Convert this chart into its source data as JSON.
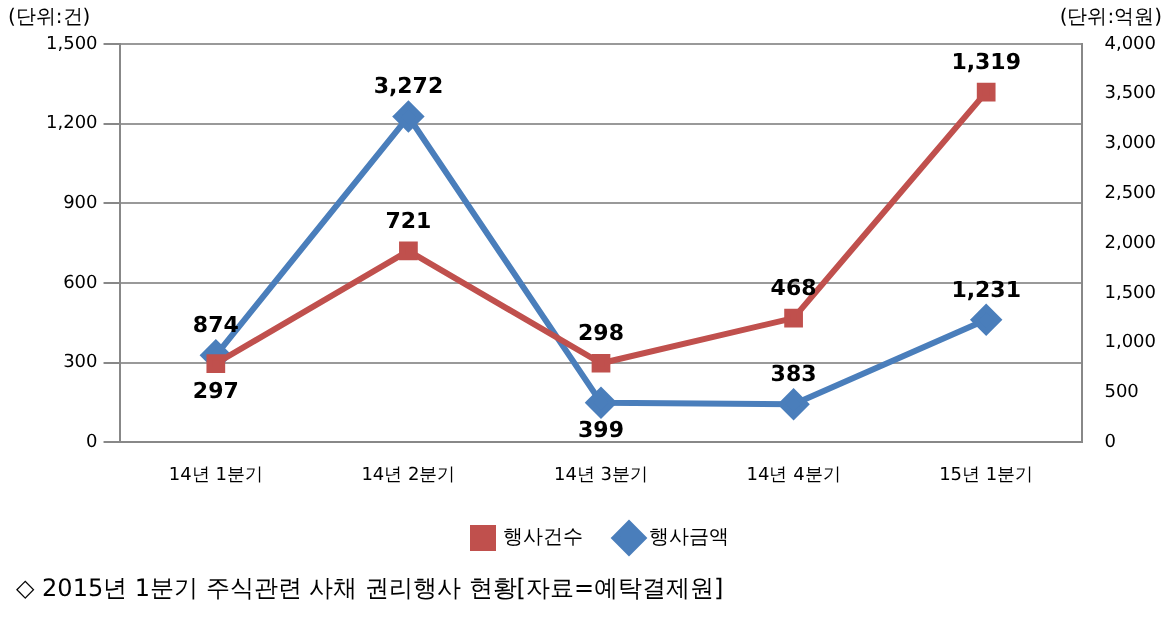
{
  "chart_data": {
    "type": "line",
    "categories": [
      "14년 1분기",
      "14년 2분기",
      "14년 3분기",
      "14년 4분기",
      "15년 1분기"
    ],
    "ylabel": "(단위:건)",
    "y2label": "(단위:억원)",
    "series": [
      {
        "name": "행사건수",
        "color": "#c0504d",
        "marker": "square",
        "values": [
          297,
          721,
          298,
          468,
          1319
        ],
        "value_labels": [
          "297",
          "721",
          "298",
          "468",
          "1,319"
        ]
      },
      {
        "name": "행사금액",
        "color": "#4a7ebb",
        "marker": "diamond",
        "axis": "y2",
        "values": [
          874,
          3272,
          399,
          383,
          1231
        ],
        "value_labels": [
          "874",
          "3,272",
          "399",
          "383",
          "1,231"
        ]
      }
    ],
    "ylim": [
      0,
      1500
    ],
    "yticks": [
      0,
      300,
      600,
      900,
      {
        "value": 1200,
        "label": "1,200"
      },
      {
        "value": 1500,
        "label": "1,500"
      }
    ],
    "y2lim": [
      0,
      4000
    ],
    "y2ticks": [
      0,
      500,
      {
        "value": 1000,
        "label": "1,000"
      },
      {
        "value": 1500,
        "label": "1,500"
      },
      {
        "value": 2000,
        "label": "2,000"
      },
      {
        "value": 2500,
        "label": "2,500"
      },
      {
        "value": 3000,
        "label": "3,000"
      },
      {
        "value": 3500,
        "label": "3,500"
      },
      {
        "value": 4000,
        "label": "4,000"
      }
    ],
    "grid": "y",
    "legend": "bottom",
    "annotations": [
      "◇ 2015년 1분기 주식관련 사채 권리행사 현황[자료=예탁결제원]"
    ]
  }
}
